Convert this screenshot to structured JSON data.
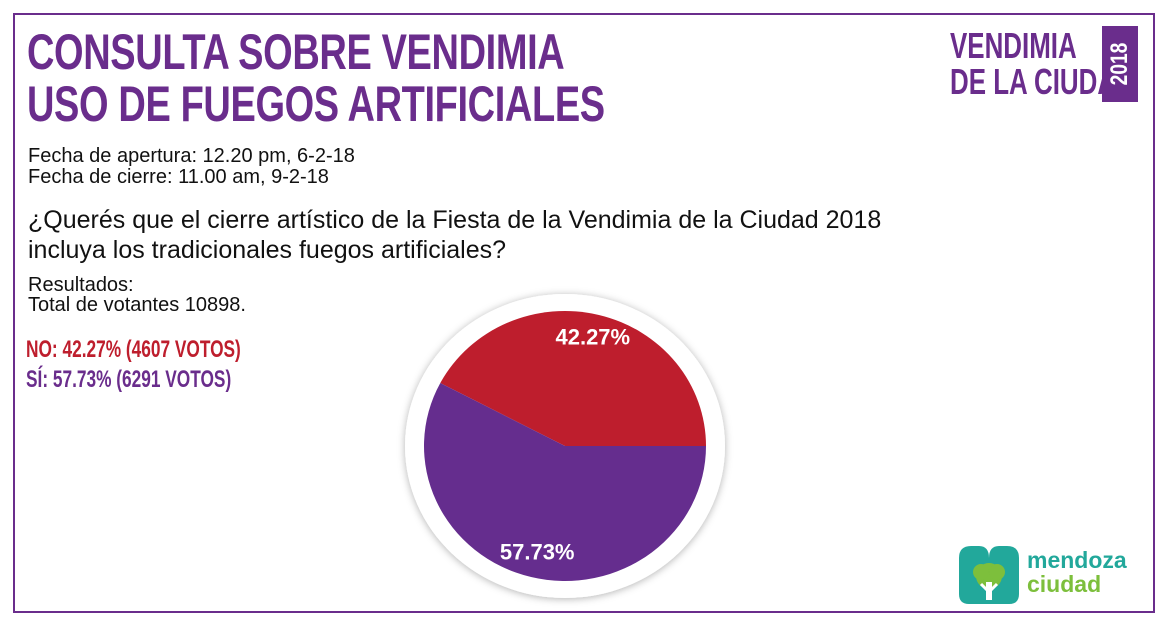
{
  "header": {
    "title_line1": "CONSULTA SOBRE VENDIMIA",
    "title_line2": "USO DE FUEGOS ARTIFICIALES",
    "opening": "Fecha de apertura: 12.20 pm, 6-2-18",
    "closing": "Fecha de cierre: 11.00 am, 9-2-18"
  },
  "question": {
    "line1": "¿Querés que el cierre artístico de la Fiesta de la Vendimia de la Ciudad 2018",
    "line2": "incluya los tradicionales fuegos artificiales?"
  },
  "results": {
    "label": "Resultados:",
    "total": "Total de votantes 10898.",
    "no_line": "NO: 42.27% (4607 VOTOS)",
    "si_line": "SÍ: 57.73% (6291 VOTOS)"
  },
  "brand": {
    "line1": "VENDIMIA",
    "line2": "DE LA CIUDAD",
    "year": "2018"
  },
  "logo": {
    "line1": "mendoza",
    "line2": "ciudad"
  },
  "colors": {
    "no": "#be1e2d",
    "si": "#652d8e",
    "brand": "#6a2d8c"
  },
  "chart_data": {
    "type": "pie",
    "slices": [
      {
        "name": "NO",
        "value": 42.27,
        "votes": 4607,
        "label": "42.27%",
        "color": "#be1e2d"
      },
      {
        "name": "SÍ",
        "value": 57.73,
        "votes": 6291,
        "label": "57.73%",
        "color": "#652d8e"
      }
    ]
  }
}
